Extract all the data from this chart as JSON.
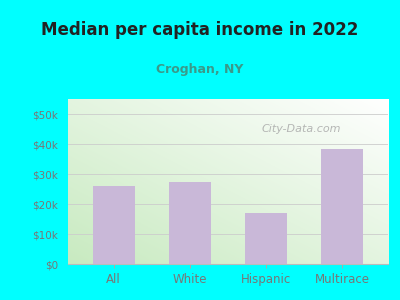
{
  "title": "Median per capita income in 2022",
  "subtitle": "Croghan, NY",
  "categories": [
    "All",
    "White",
    "Hispanic",
    "Multirace"
  ],
  "values": [
    26000,
    27500,
    17000,
    38500
  ],
  "bar_color": "#c9b8d8",
  "background_outer": "#00FFFF",
  "background_inner_top_left": "#c8eac0",
  "background_inner_bottom_right": "#ffffff",
  "title_fontsize": 12,
  "subtitle_fontsize": 9,
  "tick_color": "#777777",
  "ylim": [
    0,
    55000
  ],
  "yticks": [
    0,
    10000,
    20000,
    30000,
    40000,
    50000
  ],
  "watermark": "City-Data.com",
  "watermark_color": "#aaaaaa",
  "title_color": "#222222",
  "subtitle_color": "#3a9a8a"
}
